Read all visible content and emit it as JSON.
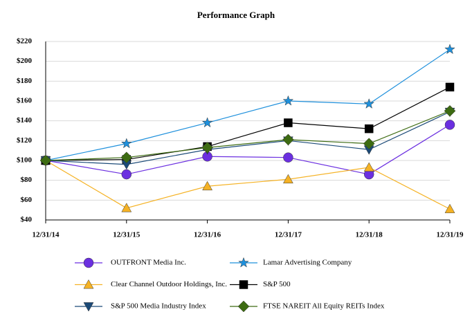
{
  "chart_data": {
    "type": "line",
    "title": "Performance Graph",
    "categories": [
      "12/31/14",
      "12/31/15",
      "12/31/16",
      "12/31/17",
      "12/31/18",
      "12/31/19"
    ],
    "ylim": [
      40,
      220
    ],
    "yticks": [
      {
        "value": 40,
        "label": "$40"
      },
      {
        "value": 60,
        "label": "$60"
      },
      {
        "value": 80,
        "label": "$80"
      },
      {
        "value": 100,
        "label": "$100"
      },
      {
        "value": 120,
        "label": "$120"
      },
      {
        "value": 140,
        "label": "$140"
      },
      {
        "value": 160,
        "label": "$160"
      },
      {
        "value": 180,
        "label": "$180"
      },
      {
        "value": 200,
        "label": "$200"
      },
      {
        "value": 220,
        "label": "$220"
      }
    ],
    "grid": true,
    "series": [
      {
        "name": "OUTFRONT Media Inc.",
        "color": "#6b2fe0",
        "marker": "circle",
        "values": [
          100,
          86,
          104,
          103,
          86,
          136
        ]
      },
      {
        "name": "Lamar Advertising Company",
        "color": "#1e90dc",
        "marker": "star",
        "values": [
          100,
          117,
          138,
          160,
          157,
          212
        ]
      },
      {
        "name": "Clear Channel Outdoor Holdings, Inc.",
        "color": "#f5b224",
        "marker": "triangle-up",
        "values": [
          100,
          52,
          74,
          81,
          93,
          51
        ]
      },
      {
        "name": "S&P 500",
        "color": "#000000",
        "marker": "square",
        "values": [
          100,
          101,
          114,
          138,
          132,
          174
        ]
      },
      {
        "name": "S&P 500 Media Industry Index",
        "color": "#1b4a78",
        "marker": "triangle-down",
        "values": [
          100,
          96,
          111,
          120,
          111,
          149
        ]
      },
      {
        "name": "FTSE NAREIT All Equity REITs Index",
        "color": "#3d6b12",
        "marker": "diamond",
        "values": [
          100,
          103,
          113,
          121,
          117,
          150
        ]
      }
    ]
  }
}
